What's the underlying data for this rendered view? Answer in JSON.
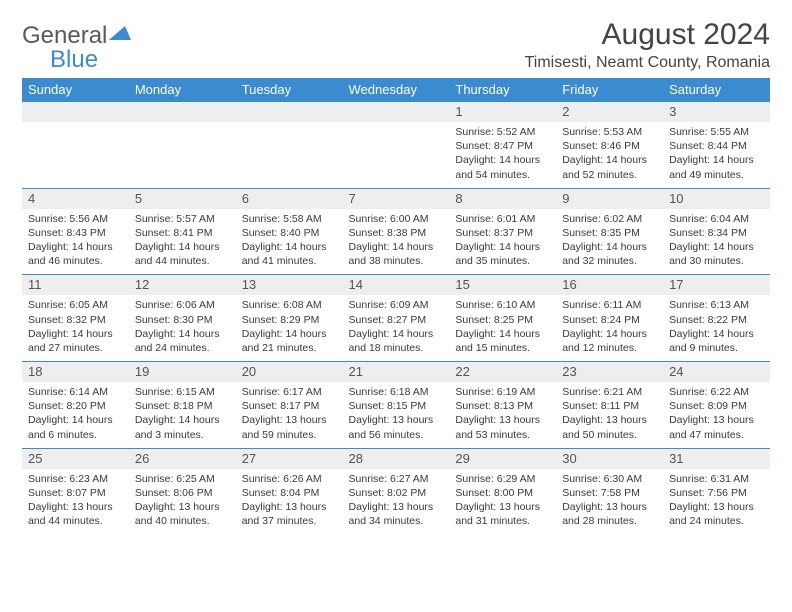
{
  "brand": {
    "part1": "General",
    "part2": "Blue"
  },
  "title": "August 2024",
  "location": "Timisesti, Neamt County, Romania",
  "style": {
    "accent": "#3b8bd0",
    "header_bg": "#3b8bd0",
    "header_text": "#ffffff",
    "daynum_bg": "#eeeeee",
    "border_color": "#3b8bd0",
    "body_text": "#3a3a3a",
    "title_color": "#444444",
    "month_fontsize": 30,
    "location_fontsize": 16,
    "day_header_fontsize": 13,
    "detail_fontsize": 10.5
  },
  "day_headers": [
    "Sunday",
    "Monday",
    "Tuesday",
    "Wednesday",
    "Thursday",
    "Friday",
    "Saturday"
  ],
  "weeks": [
    [
      null,
      null,
      null,
      null,
      {
        "n": "1",
        "sr": "5:52 AM",
        "ss": "8:47 PM",
        "dl": "14 hours and 54 minutes."
      },
      {
        "n": "2",
        "sr": "5:53 AM",
        "ss": "8:46 PM",
        "dl": "14 hours and 52 minutes."
      },
      {
        "n": "3",
        "sr": "5:55 AM",
        "ss": "8:44 PM",
        "dl": "14 hours and 49 minutes."
      }
    ],
    [
      {
        "n": "4",
        "sr": "5:56 AM",
        "ss": "8:43 PM",
        "dl": "14 hours and 46 minutes."
      },
      {
        "n": "5",
        "sr": "5:57 AM",
        "ss": "8:41 PM",
        "dl": "14 hours and 44 minutes."
      },
      {
        "n": "6",
        "sr": "5:58 AM",
        "ss": "8:40 PM",
        "dl": "14 hours and 41 minutes."
      },
      {
        "n": "7",
        "sr": "6:00 AM",
        "ss": "8:38 PM",
        "dl": "14 hours and 38 minutes."
      },
      {
        "n": "8",
        "sr": "6:01 AM",
        "ss": "8:37 PM",
        "dl": "14 hours and 35 minutes."
      },
      {
        "n": "9",
        "sr": "6:02 AM",
        "ss": "8:35 PM",
        "dl": "14 hours and 32 minutes."
      },
      {
        "n": "10",
        "sr": "6:04 AM",
        "ss": "8:34 PM",
        "dl": "14 hours and 30 minutes."
      }
    ],
    [
      {
        "n": "11",
        "sr": "6:05 AM",
        "ss": "8:32 PM",
        "dl": "14 hours and 27 minutes."
      },
      {
        "n": "12",
        "sr": "6:06 AM",
        "ss": "8:30 PM",
        "dl": "14 hours and 24 minutes."
      },
      {
        "n": "13",
        "sr": "6:08 AM",
        "ss": "8:29 PM",
        "dl": "14 hours and 21 minutes."
      },
      {
        "n": "14",
        "sr": "6:09 AM",
        "ss": "8:27 PM",
        "dl": "14 hours and 18 minutes."
      },
      {
        "n": "15",
        "sr": "6:10 AM",
        "ss": "8:25 PM",
        "dl": "14 hours and 15 minutes."
      },
      {
        "n": "16",
        "sr": "6:11 AM",
        "ss": "8:24 PM",
        "dl": "14 hours and 12 minutes."
      },
      {
        "n": "17",
        "sr": "6:13 AM",
        "ss": "8:22 PM",
        "dl": "14 hours and 9 minutes."
      }
    ],
    [
      {
        "n": "18",
        "sr": "6:14 AM",
        "ss": "8:20 PM",
        "dl": "14 hours and 6 minutes."
      },
      {
        "n": "19",
        "sr": "6:15 AM",
        "ss": "8:18 PM",
        "dl": "14 hours and 3 minutes."
      },
      {
        "n": "20",
        "sr": "6:17 AM",
        "ss": "8:17 PM",
        "dl": "13 hours and 59 minutes."
      },
      {
        "n": "21",
        "sr": "6:18 AM",
        "ss": "8:15 PM",
        "dl": "13 hours and 56 minutes."
      },
      {
        "n": "22",
        "sr": "6:19 AM",
        "ss": "8:13 PM",
        "dl": "13 hours and 53 minutes."
      },
      {
        "n": "23",
        "sr": "6:21 AM",
        "ss": "8:11 PM",
        "dl": "13 hours and 50 minutes."
      },
      {
        "n": "24",
        "sr": "6:22 AM",
        "ss": "8:09 PM",
        "dl": "13 hours and 47 minutes."
      }
    ],
    [
      {
        "n": "25",
        "sr": "6:23 AM",
        "ss": "8:07 PM",
        "dl": "13 hours and 44 minutes."
      },
      {
        "n": "26",
        "sr": "6:25 AM",
        "ss": "8:06 PM",
        "dl": "13 hours and 40 minutes."
      },
      {
        "n": "27",
        "sr": "6:26 AM",
        "ss": "8:04 PM",
        "dl": "13 hours and 37 minutes."
      },
      {
        "n": "28",
        "sr": "6:27 AM",
        "ss": "8:02 PM",
        "dl": "13 hours and 34 minutes."
      },
      {
        "n": "29",
        "sr": "6:29 AM",
        "ss": "8:00 PM",
        "dl": "13 hours and 31 minutes."
      },
      {
        "n": "30",
        "sr": "6:30 AM",
        "ss": "7:58 PM",
        "dl": "13 hours and 28 minutes."
      },
      {
        "n": "31",
        "sr": "6:31 AM",
        "ss": "7:56 PM",
        "dl": "13 hours and 24 minutes."
      }
    ]
  ],
  "labels": {
    "sunrise": "Sunrise:",
    "sunset": "Sunset:",
    "daylight": "Daylight:"
  }
}
